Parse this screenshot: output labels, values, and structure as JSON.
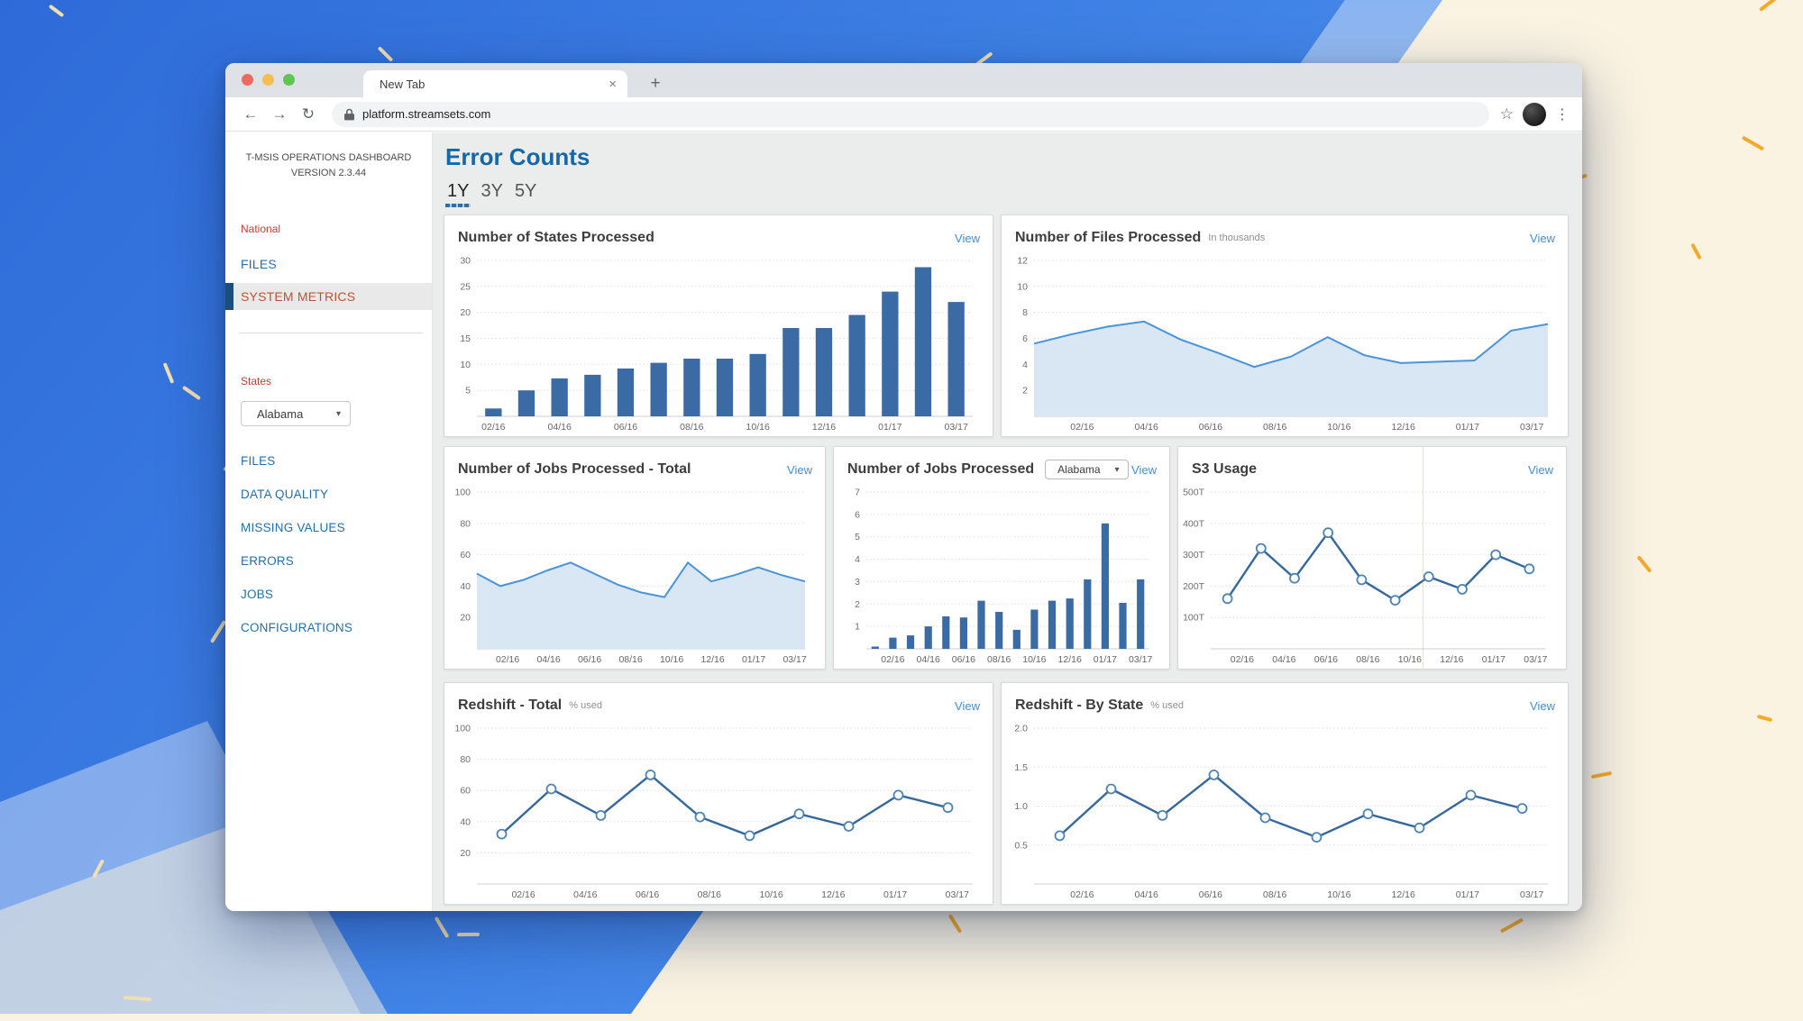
{
  "colors": {
    "accent_blue": "#1568a8",
    "bar": "#3b6ba5",
    "area_fill": "#d9e6f4",
    "area_line": "#4a94d8",
    "line": "#35689c",
    "line_marker": "#4c84b4",
    "view_link": "#3f8fd6",
    "red_label": "#c43d2f",
    "sidebar_link": "#2170ad",
    "active_item_text": "#c0532f",
    "active_item_bar": "#1d4e79",
    "bg_blue": "#3f82e6",
    "bg_cream": "#faf3e2",
    "dash_cream": "#f2dfae",
    "dash_orange": "#f5a929"
  },
  "browser": {
    "tab_title": "New Tab",
    "url": "platform.streamsets.com",
    "icons": {
      "close": "×",
      "plus": "+",
      "back": "←",
      "forward": "→",
      "reload": "↻",
      "star": "☆",
      "menu": "⋮"
    }
  },
  "sidebar": {
    "app_title_line1": "T-MSIS OPERATIONS DASHBOARD",
    "app_title_line2": "VERSION 2.3.44",
    "national_label": "National",
    "national_items": [
      {
        "label": "FILES"
      },
      {
        "label": "SYSTEM METRICS"
      }
    ],
    "states_label": "States",
    "state_dropdown_value": "Alabama",
    "state_items": [
      "FILES",
      "DATA QUALITY",
      "MISSING VALUES",
      "ERRORS",
      "JOBS",
      "CONFIGURATIONS"
    ]
  },
  "main": {
    "page_title": "Error Counts",
    "range_tabs": [
      "1Y",
      "3Y",
      "5Y"
    ],
    "view_label": "View"
  },
  "chart_data": [
    {
      "id": "states-processed",
      "type": "bar",
      "title": "Number of States Processed",
      "subtitle": "",
      "values": [
        1.5,
        5,
        7.3,
        8,
        9.2,
        10.3,
        11.1,
        11.1,
        12,
        17,
        17,
        19.5,
        24,
        28.7,
        22
      ],
      "labels": [
        "02/16",
        "",
        "04/16",
        "",
        "06/16",
        "",
        "08/16",
        "",
        "10/16",
        "",
        "12/16",
        "",
        "01/17",
        "",
        "03/17"
      ],
      "ylim": [
        0,
        30
      ],
      "ytick_values": [
        5,
        10,
        15,
        20,
        25,
        30
      ],
      "ytick_labels": [
        "5",
        "10",
        "15",
        "20",
        "25",
        "30"
      ],
      "bar_frac": 0.5,
      "grid": true,
      "legend": "none"
    },
    {
      "id": "files-processed",
      "type": "area",
      "title": "Number of Files Processed",
      "subtitle": "In thousands",
      "values": [
        5.6,
        6.3,
        6.9,
        7.3,
        5.9,
        4.9,
        3.8,
        4.6,
        6.1,
        4.7,
        4.1,
        4.2,
        4.3,
        6.6,
        7.1
      ],
      "xlabels": [
        "02/16",
        "04/16",
        "06/16",
        "08/16",
        "10/16",
        "12/16",
        "01/17",
        "03/17"
      ],
      "ylim": [
        0,
        12
      ],
      "ytick_values": [
        2,
        4,
        6,
        8,
        10,
        12
      ],
      "ytick_labels": [
        "2",
        "4",
        "6",
        "8",
        "10",
        "12"
      ],
      "grid": true,
      "legend": "none"
    },
    {
      "id": "jobs-total",
      "type": "area",
      "title": "Number of Jobs Processed - Total",
      "subtitle": "",
      "values": [
        48,
        40,
        44,
        50,
        55,
        48,
        41,
        36,
        33,
        55,
        43,
        47,
        52,
        47,
        43
      ],
      "xlabels": [
        "02/16",
        "04/16",
        "06/16",
        "08/16",
        "10/16",
        "12/16",
        "01/17",
        "03/17"
      ],
      "ylim": [
        0,
        100
      ],
      "ytick_values": [
        20,
        40,
        60,
        80,
        100
      ],
      "ytick_labels": [
        "20",
        "40",
        "60",
        "80",
        "100"
      ],
      "grid": true,
      "legend": "none"
    },
    {
      "id": "jobs-by-state",
      "type": "bar",
      "title": "Number of Jobs Processed",
      "subtitle": "",
      "dropdown_value": "Alabama",
      "values": [
        0.1,
        0.5,
        0.6,
        1.0,
        1.45,
        1.4,
        2.15,
        1.65,
        0.85,
        1.75,
        2.15,
        2.25,
        3.1,
        5.6,
        2.05,
        3.1
      ],
      "labels": [
        "",
        "02/16",
        "",
        "04/16",
        "",
        "06/16",
        "",
        "08/16",
        "",
        "10/16",
        "",
        "12/16",
        "",
        "01/17",
        "",
        "03/17"
      ],
      "ylim": [
        0,
        7
      ],
      "ytick_values": [
        1,
        2,
        3,
        4,
        5,
        6,
        7
      ],
      "ytick_labels": [
        "1",
        "2",
        "3",
        "4",
        "5",
        "6",
        "7"
      ],
      "bar_frac": 0.42,
      "grid": true,
      "legend": "none"
    },
    {
      "id": "s3-usage",
      "type": "line",
      "title": "S3 Usage",
      "subtitle": "",
      "values": [
        160,
        320,
        225,
        370,
        220,
        155,
        230,
        190,
        300,
        255
      ],
      "xlabels": [
        "02/16",
        "04/16",
        "06/16",
        "08/16",
        "10/16",
        "12/16",
        "01/17",
        "03/17"
      ],
      "ylim": [
        0,
        500
      ],
      "ytick_values": [
        100,
        200,
        300,
        400,
        500
      ],
      "ytick_labels": [
        "100T",
        "200T",
        "300T",
        "400T",
        "500T"
      ],
      "grid": true,
      "legend": "none"
    },
    {
      "id": "redshift-total",
      "type": "line",
      "title": "Redshift - Total",
      "subtitle": "% used",
      "values": [
        32,
        61,
        44,
        70,
        43,
        31,
        45,
        37,
        57,
        49
      ],
      "xlabels": [
        "02/16",
        "04/16",
        "06/16",
        "08/16",
        "10/16",
        "12/16",
        "01/17",
        "03/17"
      ],
      "ylim": [
        0,
        100
      ],
      "ytick_values": [
        20,
        40,
        60,
        80,
        100
      ],
      "ytick_labels": [
        "20",
        "40",
        "60",
        "80",
        "100"
      ],
      "grid": true,
      "legend": "none"
    },
    {
      "id": "redshift-by-state",
      "type": "line",
      "title": "Redshift - By State",
      "subtitle": "% used",
      "values": [
        0.62,
        1.22,
        0.88,
        1.4,
        0.85,
        0.6,
        0.9,
        0.72,
        1.14,
        0.97
      ],
      "xlabels": [
        "02/16",
        "04/16",
        "06/16",
        "08/16",
        "10/16",
        "12/16",
        "01/17",
        "03/17"
      ],
      "ylim": [
        0,
        2
      ],
      "ytick_values": [
        0.5,
        1.0,
        1.5,
        2.0
      ],
      "ytick_labels": [
        "0.5",
        "1.0",
        "1.5",
        "2.0"
      ],
      "grid": true,
      "legend": "none"
    }
  ]
}
